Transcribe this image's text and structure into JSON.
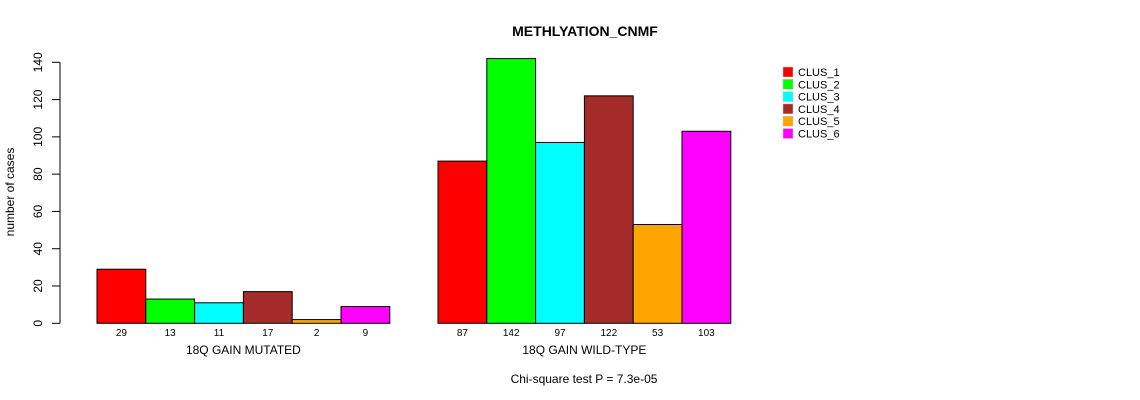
{
  "chart_data": {
    "type": "bar",
    "title": "METHLYATION_CNMF",
    "ylabel": "number of cases",
    "ylim": [
      0,
      140
    ],
    "yticks": [
      0,
      20,
      40,
      60,
      80,
      100,
      120,
      140
    ],
    "groups": [
      {
        "label": "18Q GAIN MUTATED",
        "values": [
          29,
          13,
          11,
          17,
          2,
          9
        ]
      },
      {
        "label": "18Q GAIN WILD-TYPE",
        "values": [
          87,
          142,
          97,
          122,
          53,
          103
        ]
      }
    ],
    "series": [
      {
        "name": "CLUS_1",
        "color": "#FF0000"
      },
      {
        "name": "CLUS_2",
        "color": "#00FF00"
      },
      {
        "name": "CLUS_3",
        "color": "#00FFFF"
      },
      {
        "name": "CLUS_4",
        "color": "#A52A2A"
      },
      {
        "name": "CLUS_5",
        "color": "#FFA500"
      },
      {
        "name": "CLUS_6",
        "color": "#FF00FF"
      }
    ],
    "legend_position": "top-right",
    "footnote": "Chi-square test P = 7.3e-05"
  }
}
